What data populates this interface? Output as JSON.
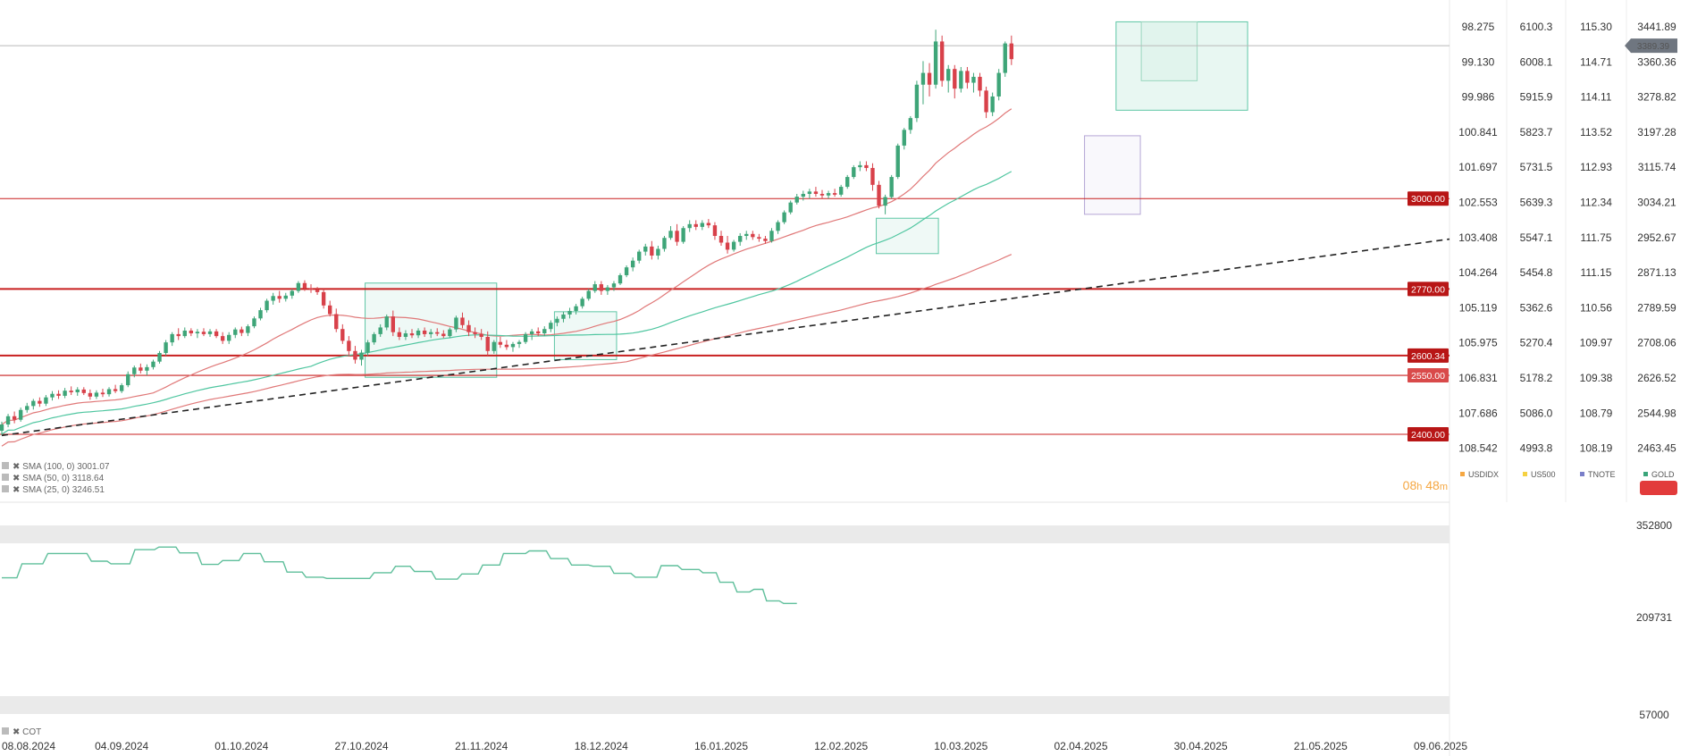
{
  "chart_data": {
    "type": "candlestick",
    "instrument": "GOLD",
    "last_price_label": "3389.39",
    "timer": {
      "hours": "08",
      "h": "h",
      "minutes": "48",
      "m": "m"
    },
    "price_axis": {
      "ylim": [
        2400,
        3441.89
      ],
      "gold_ticks": [
        "3441.89",
        "3360.36",
        "3278.82",
        "3197.28",
        "3115.74",
        "3034.21",
        "2952.67",
        "2871.13",
        "2789.59",
        "2708.06",
        "2626.52",
        "2544.98",
        "2463.45"
      ],
      "usdidx_ticks": [
        "98.275",
        "99.130",
        "99.986",
        "100.841",
        "101.697",
        "102.553",
        "103.408",
        "104.264",
        "105.119",
        "105.975",
        "106.831",
        "107.686",
        "108.542"
      ],
      "us500_ticks": [
        "6100.3",
        "6008.1",
        "5915.9",
        "5823.7",
        "5731.5",
        "5639.3",
        "5547.1",
        "5454.8",
        "5362.6",
        "5270.4",
        "5178.2",
        "5086.0",
        "4993.8"
      ],
      "tnote_ticks": [
        "115.30",
        "114.71",
        "114.11",
        "113.52",
        "112.93",
        "112.34",
        "111.75",
        "111.15",
        "110.56",
        "109.97",
        "109.38",
        "108.79",
        "108.19"
      ]
    },
    "legend": [
      {
        "name": "USDIDX",
        "color": "#f5a742"
      },
      {
        "name": "US500",
        "color": "#f5d142"
      },
      {
        "name": "TNOTE",
        "color": "#7a7fc9"
      },
      {
        "name": "GOLD",
        "color": "#3aa57a"
      }
    ],
    "levels": [
      {
        "value": 3000,
        "label": "3000.00",
        "style": "thin"
      },
      {
        "value": 2770,
        "label": "2770.00",
        "style": "bold"
      },
      {
        "value": 2600.34,
        "label": "2600.34",
        "style": "bold"
      },
      {
        "value": 2550,
        "label": "2550.00",
        "style": "thin"
      },
      {
        "value": 2400,
        "label": "2400.00",
        "style": "thin"
      }
    ],
    "x_ticks": [
      "08.08.2024",
      "04.09.2024",
      "01.10.2024",
      "27.10.2024",
      "21.11.2024",
      "18.12.2024",
      "16.01.2025",
      "12.02.2025",
      "10.03.2025",
      "02.04.2025",
      "21.05.2025",
      "09.06.2025"
    ],
    "x_tick_bar": [
      0,
      19,
      38,
      57,
      76,
      95,
      114,
      133,
      152,
      171,
      209,
      228
    ],
    "x_extra_ticks": [
      {
        "label": "30.04.2025",
        "bar": 190
      }
    ],
    "bars_total_axis": 231,
    "candles": [
      [
        2409,
        2432,
        2398,
        2425
      ],
      [
        2425,
        2452,
        2418,
        2446
      ],
      [
        2446,
        2458,
        2428,
        2437
      ],
      [
        2437,
        2468,
        2432,
        2462
      ],
      [
        2462,
        2480,
        2455,
        2472
      ],
      [
        2472,
        2490,
        2463,
        2485
      ],
      [
        2485,
        2494,
        2470,
        2478
      ],
      [
        2478,
        2500,
        2472,
        2494
      ],
      [
        2494,
        2510,
        2486,
        2503
      ],
      [
        2503,
        2512,
        2490,
        2498
      ],
      [
        2498,
        2518,
        2492,
        2511
      ],
      [
        2511,
        2522,
        2500,
        2507
      ],
      [
        2507,
        2520,
        2498,
        2514
      ],
      [
        2514,
        2520,
        2500,
        2505
      ],
      [
        2505,
        2514,
        2488,
        2496
      ],
      [
        2496,
        2512,
        2490,
        2506
      ],
      [
        2506,
        2516,
        2495,
        2502
      ],
      [
        2502,
        2520,
        2496,
        2515
      ],
      [
        2515,
        2526,
        2505,
        2510
      ],
      [
        2510,
        2530,
        2505,
        2525
      ],
      [
        2525,
        2560,
        2520,
        2553
      ],
      [
        2553,
        2575,
        2545,
        2570
      ],
      [
        2570,
        2580,
        2555,
        2562
      ],
      [
        2562,
        2578,
        2550,
        2571
      ],
      [
        2571,
        2590,
        2565,
        2585
      ],
      [
        2585,
        2612,
        2580,
        2607
      ],
      [
        2607,
        2640,
        2600,
        2634
      ],
      [
        2634,
        2660,
        2625,
        2655
      ],
      [
        2655,
        2670,
        2640,
        2650
      ],
      [
        2650,
        2672,
        2645,
        2664
      ],
      [
        2664,
        2670,
        2650,
        2657
      ],
      [
        2657,
        2668,
        2645,
        2661
      ],
      [
        2661,
        2670,
        2650,
        2655
      ],
      [
        2655,
        2668,
        2648,
        2662
      ],
      [
        2662,
        2668,
        2645,
        2650
      ],
      [
        2650,
        2660,
        2630,
        2638
      ],
      [
        2638,
        2660,
        2630,
        2653
      ],
      [
        2653,
        2672,
        2645,
        2667
      ],
      [
        2667,
        2674,
        2650,
        2658
      ],
      [
        2658,
        2680,
        2650,
        2675
      ],
      [
        2675,
        2700,
        2670,
        2695
      ],
      [
        2695,
        2722,
        2690,
        2716
      ],
      [
        2716,
        2745,
        2710,
        2740
      ],
      [
        2740,
        2760,
        2730,
        2752
      ],
      [
        2752,
        2765,
        2735,
        2745
      ],
      [
        2745,
        2760,
        2738,
        2753
      ],
      [
        2753,
        2770,
        2745,
        2765
      ],
      [
        2765,
        2790,
        2760,
        2785
      ],
      [
        2785,
        2792,
        2765,
        2772
      ],
      [
        2772,
        2782,
        2760,
        2768
      ],
      [
        2768,
        2775,
        2755,
        2762
      ],
      [
        2762,
        2770,
        2720,
        2728
      ],
      [
        2728,
        2740,
        2700,
        2706
      ],
      [
        2706,
        2720,
        2660,
        2668
      ],
      [
        2668,
        2680,
        2630,
        2638
      ],
      [
        2638,
        2650,
        2600,
        2612
      ],
      [
        2612,
        2625,
        2580,
        2590
      ],
      [
        2590,
        2615,
        2575,
        2608
      ],
      [
        2608,
        2640,
        2600,
        2634
      ],
      [
        2634,
        2660,
        2628,
        2655
      ],
      [
        2655,
        2680,
        2648,
        2672
      ],
      [
        2672,
        2705,
        2665,
        2700
      ],
      [
        2700,
        2715,
        2650,
        2660
      ],
      [
        2660,
        2672,
        2640,
        2648
      ],
      [
        2648,
        2665,
        2640,
        2657
      ],
      [
        2657,
        2668,
        2645,
        2652
      ],
      [
        2652,
        2670,
        2645,
        2664
      ],
      [
        2664,
        2672,
        2648,
        2655
      ],
      [
        2655,
        2668,
        2645,
        2660
      ],
      [
        2660,
        2670,
        2650,
        2656
      ],
      [
        2656,
        2665,
        2645,
        2650
      ],
      [
        2650,
        2672,
        2645,
        2667
      ],
      [
        2667,
        2702,
        2660,
        2697
      ],
      [
        2697,
        2710,
        2670,
        2678
      ],
      [
        2678,
        2690,
        2650,
        2660
      ],
      [
        2660,
        2672,
        2645,
        2655
      ],
      [
        2655,
        2668,
        2640,
        2648
      ],
      [
        2648,
        2662,
        2600,
        2612
      ],
      [
        2612,
        2640,
        2605,
        2635
      ],
      [
        2635,
        2648,
        2620,
        2628
      ],
      [
        2628,
        2640,
        2615,
        2622
      ],
      [
        2622,
        2635,
        2610,
        2630
      ],
      [
        2630,
        2640,
        2620,
        2635
      ],
      [
        2635,
        2660,
        2630,
        2655
      ],
      [
        2655,
        2668,
        2640,
        2662
      ],
      [
        2662,
        2672,
        2650,
        2657
      ],
      [
        2657,
        2675,
        2650,
        2668
      ],
      [
        2668,
        2690,
        2660,
        2684
      ],
      [
        2684,
        2700,
        2675,
        2694
      ],
      [
        2694,
        2712,
        2685,
        2705
      ],
      [
        2705,
        2722,
        2695,
        2714
      ],
      [
        2714,
        2732,
        2705,
        2726
      ],
      [
        2726,
        2750,
        2720,
        2745
      ],
      [
        2745,
        2770,
        2740,
        2765
      ],
      [
        2765,
        2790,
        2760,
        2782
      ],
      [
        2782,
        2790,
        2755,
        2765
      ],
      [
        2765,
        2780,
        2755,
        2774
      ],
      [
        2774,
        2790,
        2765,
        2784
      ],
      [
        2784,
        2810,
        2780,
        2805
      ],
      [
        2805,
        2830,
        2800,
        2825
      ],
      [
        2825,
        2850,
        2815,
        2842
      ],
      [
        2842,
        2870,
        2835,
        2865
      ],
      [
        2865,
        2885,
        2855,
        2878
      ],
      [
        2878,
        2892,
        2845,
        2855
      ],
      [
        2855,
        2880,
        2845,
        2872
      ],
      [
        2872,
        2905,
        2865,
        2900
      ],
      [
        2900,
        2930,
        2895,
        2918
      ],
      [
        2918,
        2935,
        2880,
        2890
      ],
      [
        2890,
        2930,
        2885,
        2925
      ],
      [
        2925,
        2945,
        2915,
        2935
      ],
      [
        2935,
        2945,
        2920,
        2928
      ],
      [
        2928,
        2945,
        2920,
        2938
      ],
      [
        2938,
        2948,
        2925,
        2932
      ],
      [
        2932,
        2940,
        2895,
        2905
      ],
      [
        2905,
        2918,
        2880,
        2888
      ],
      [
        2888,
        2905,
        2860,
        2870
      ],
      [
        2870,
        2895,
        2865,
        2890
      ],
      [
        2890,
        2912,
        2880,
        2905
      ],
      [
        2905,
        2918,
        2895,
        2910
      ],
      [
        2910,
        2918,
        2895,
        2902
      ],
      [
        2902,
        2910,
        2890,
        2898
      ],
      [
        2898,
        2905,
        2885,
        2892
      ],
      [
        2892,
        2925,
        2888,
        2918
      ],
      [
        2918,
        2945,
        2910,
        2940
      ],
      [
        2940,
        2970,
        2935,
        2965
      ],
      [
        2965,
        2995,
        2960,
        2990
      ],
      [
        2990,
        3012,
        2985,
        3005
      ],
      [
        3005,
        3020,
        2995,
        3012
      ],
      [
        3012,
        3025,
        3000,
        3018
      ],
      [
        3018,
        3030,
        3005,
        3012
      ],
      [
        3012,
        3022,
        3000,
        3008
      ],
      [
        3008,
        3020,
        3000,
        3014
      ],
      [
        3014,
        3025,
        3005,
        3010
      ],
      [
        3010,
        3035,
        3005,
        3030
      ],
      [
        3030,
        3060,
        3025,
        3055
      ],
      [
        3055,
        3085,
        3050,
        3080
      ],
      [
        3080,
        3095,
        3070,
        3085
      ],
      [
        3085,
        3095,
        3070,
        3078
      ],
      [
        3078,
        3090,
        3020,
        3035
      ],
      [
        3035,
        3045,
        2975,
        2982
      ],
      [
        2982,
        3010,
        2960,
        3004
      ],
      [
        3004,
        3060,
        3000,
        3055
      ],
      [
        3055,
        3140,
        3050,
        3135
      ],
      [
        3135,
        3180,
        3125,
        3175
      ],
      [
        3175,
        3210,
        3165,
        3205
      ],
      [
        3205,
        3300,
        3195,
        3290
      ],
      [
        3290,
        3350,
        3240,
        3320
      ],
      [
        3320,
        3345,
        3260,
        3290
      ],
      [
        3290,
        3430,
        3280,
        3400
      ],
      [
        3400,
        3415,
        3285,
        3300
      ],
      [
        3300,
        3340,
        3270,
        3330
      ],
      [
        3330,
        3340,
        3255,
        3280
      ],
      [
        3280,
        3335,
        3270,
        3325
      ],
      [
        3325,
        3335,
        3280,
        3295
      ],
      [
        3295,
        3320,
        3270,
        3310
      ],
      [
        3310,
        3320,
        3260,
        3275
      ],
      [
        3275,
        3285,
        3205,
        3220
      ],
      [
        3220,
        3270,
        3210,
        3260
      ],
      [
        3260,
        3330,
        3250,
        3320
      ],
      [
        3320,
        3400,
        3310,
        3395
      ],
      [
        3395,
        3415,
        3340,
        3355
      ]
    ],
    "cot_line": [
      {
        "bar": 0,
        "value": 271000
      },
      {
        "bar": 2.4,
        "value": 271000
      },
      {
        "bar": 3.2,
        "value": 293000
      },
      {
        "bar": 6.5,
        "value": 293000
      },
      {
        "bar": 7.3,
        "value": 309000
      },
      {
        "bar": 13.5,
        "value": 309000
      },
      {
        "bar": 14.2,
        "value": 297000
      },
      {
        "bar": 16.7,
        "value": 297000
      },
      {
        "bar": 17.3,
        "value": 293000
      },
      {
        "bar": 20.3,
        "value": 293000
      },
      {
        "bar": 21.1,
        "value": 315000
      },
      {
        "bar": 24.2,
        "value": 315000
      },
      {
        "bar": 24.9,
        "value": 319000
      },
      {
        "bar": 27.6,
        "value": 319000
      },
      {
        "bar": 28.2,
        "value": 310000
      },
      {
        "bar": 31.0,
        "value": 310000
      },
      {
        "bar": 31.7,
        "value": 292000
      },
      {
        "bar": 34.3,
        "value": 292000
      },
      {
        "bar": 35.0,
        "value": 298000
      },
      {
        "bar": 37.6,
        "value": 298000
      },
      {
        "bar": 38.3,
        "value": 309000
      },
      {
        "bar": 41.0,
        "value": 309000
      },
      {
        "bar": 41.6,
        "value": 296000
      },
      {
        "bar": 44.6,
        "value": 296000
      },
      {
        "bar": 45.2,
        "value": 280000
      },
      {
        "bar": 47.6,
        "value": 280000
      },
      {
        "bar": 48.2,
        "value": 272000
      },
      {
        "bar": 50.9,
        "value": 272000
      },
      {
        "bar": 51.5,
        "value": 270000
      },
      {
        "bar": 58.3,
        "value": 270000
      },
      {
        "bar": 59.0,
        "value": 279000
      },
      {
        "bar": 61.7,
        "value": 279000
      },
      {
        "bar": 62.4,
        "value": 289000
      },
      {
        "bar": 64.7,
        "value": 289000
      },
      {
        "bar": 65.4,
        "value": 281000
      },
      {
        "bar": 68.1,
        "value": 281000
      },
      {
        "bar": 68.8,
        "value": 269000
      },
      {
        "bar": 72.2,
        "value": 269000
      },
      {
        "bar": 72.9,
        "value": 277000
      },
      {
        "bar": 75.5,
        "value": 277000
      },
      {
        "bar": 76.2,
        "value": 291000
      },
      {
        "bar": 78.9,
        "value": 291000
      },
      {
        "bar": 79.5,
        "value": 309000
      },
      {
        "bar": 83.0,
        "value": 309000
      },
      {
        "bar": 83.6,
        "value": 313000
      },
      {
        "bar": 86.3,
        "value": 313000
      },
      {
        "bar": 87.0,
        "value": 301000
      },
      {
        "bar": 89.7,
        "value": 301000
      },
      {
        "bar": 90.3,
        "value": 291000
      },
      {
        "bar": 93.0,
        "value": 291000
      },
      {
        "bar": 93.7,
        "value": 289000
      },
      {
        "bar": 96.4,
        "value": 289000
      },
      {
        "bar": 97.0,
        "value": 278000
      },
      {
        "bar": 99.7,
        "value": 278000
      },
      {
        "bar": 100.4,
        "value": 272000
      },
      {
        "bar": 103.8,
        "value": 272000
      },
      {
        "bar": 104.5,
        "value": 290000
      },
      {
        "bar": 107.1,
        "value": 290000
      },
      {
        "bar": 107.8,
        "value": 284000
      },
      {
        "bar": 110.5,
        "value": 284000
      },
      {
        "bar": 111.1,
        "value": 279000
      },
      {
        "bar": 113.2,
        "value": 279000
      },
      {
        "bar": 113.8,
        "value": 264000
      },
      {
        "bar": 115.9,
        "value": 264000
      },
      {
        "bar": 116.5,
        "value": 249000
      },
      {
        "bar": 118.5,
        "value": 249000
      },
      {
        "bar": 119.2,
        "value": 253000
      },
      {
        "bar": 120.6,
        "value": 253000
      },
      {
        "bar": 121.2,
        "value": 235000
      },
      {
        "bar": 123.2,
        "value": 235000
      },
      {
        "bar": 123.9,
        "value": 231000
      },
      {
        "bar": 126.0,
        "value": 231000
      }
    ],
    "cot_axis": {
      "ticks": [
        "352800",
        "209731",
        "57000"
      ],
      "ylim": [
        57000,
        352800
      ]
    },
    "sma_legend": [
      {
        "label": "SMA (100, 0) 3001.07",
        "color": "#e06a6a"
      },
      {
        "label": "SMA (50, 0) 3118.64",
        "color": "#4fc6a0"
      },
      {
        "label": "SMA (25, 0) 3246.51",
        "color": "#e06a6a"
      }
    ],
    "cot_legend": "COT"
  }
}
